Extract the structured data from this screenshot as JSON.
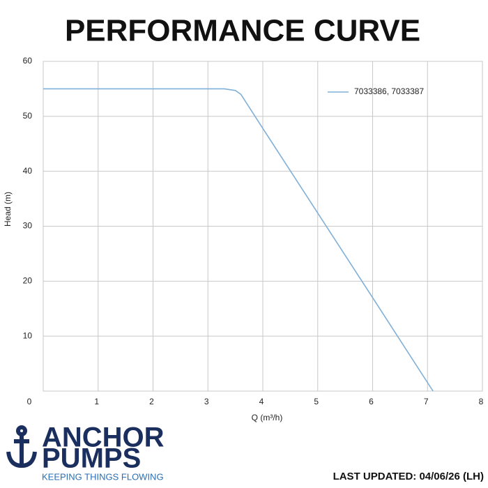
{
  "chart_data": {
    "type": "line",
    "title": "PERFORMANCE CURVE",
    "x_label": "Q (m³/h)",
    "y_label": "Head (m)",
    "x": [
      0,
      3,
      3.3,
      3.5,
      3.6,
      4,
      5,
      6,
      7.1
    ],
    "series": [
      {
        "name": "7033386, 7033387",
        "color": "#7fb0d8",
        "values": [
          55,
          55,
          55,
          54.7,
          54,
          47.8,
          32.4,
          17,
          0
        ]
      }
    ],
    "xlim": [
      0,
      8
    ],
    "xticks": [
      0,
      1,
      2,
      3,
      4,
      5,
      6,
      7,
      8
    ],
    "ylim": [
      0,
      60
    ],
    "yticks": [
      10,
      20,
      30,
      40,
      50,
      60
    ],
    "grid": true,
    "legend": "upper right"
  },
  "logo": {
    "line1": "ANCHOR",
    "line2": "PUMPS",
    "tagline": "KEEPING THINGS FLOWING"
  },
  "footer": "LAST UPDATED: 04/06/26 (LH)"
}
